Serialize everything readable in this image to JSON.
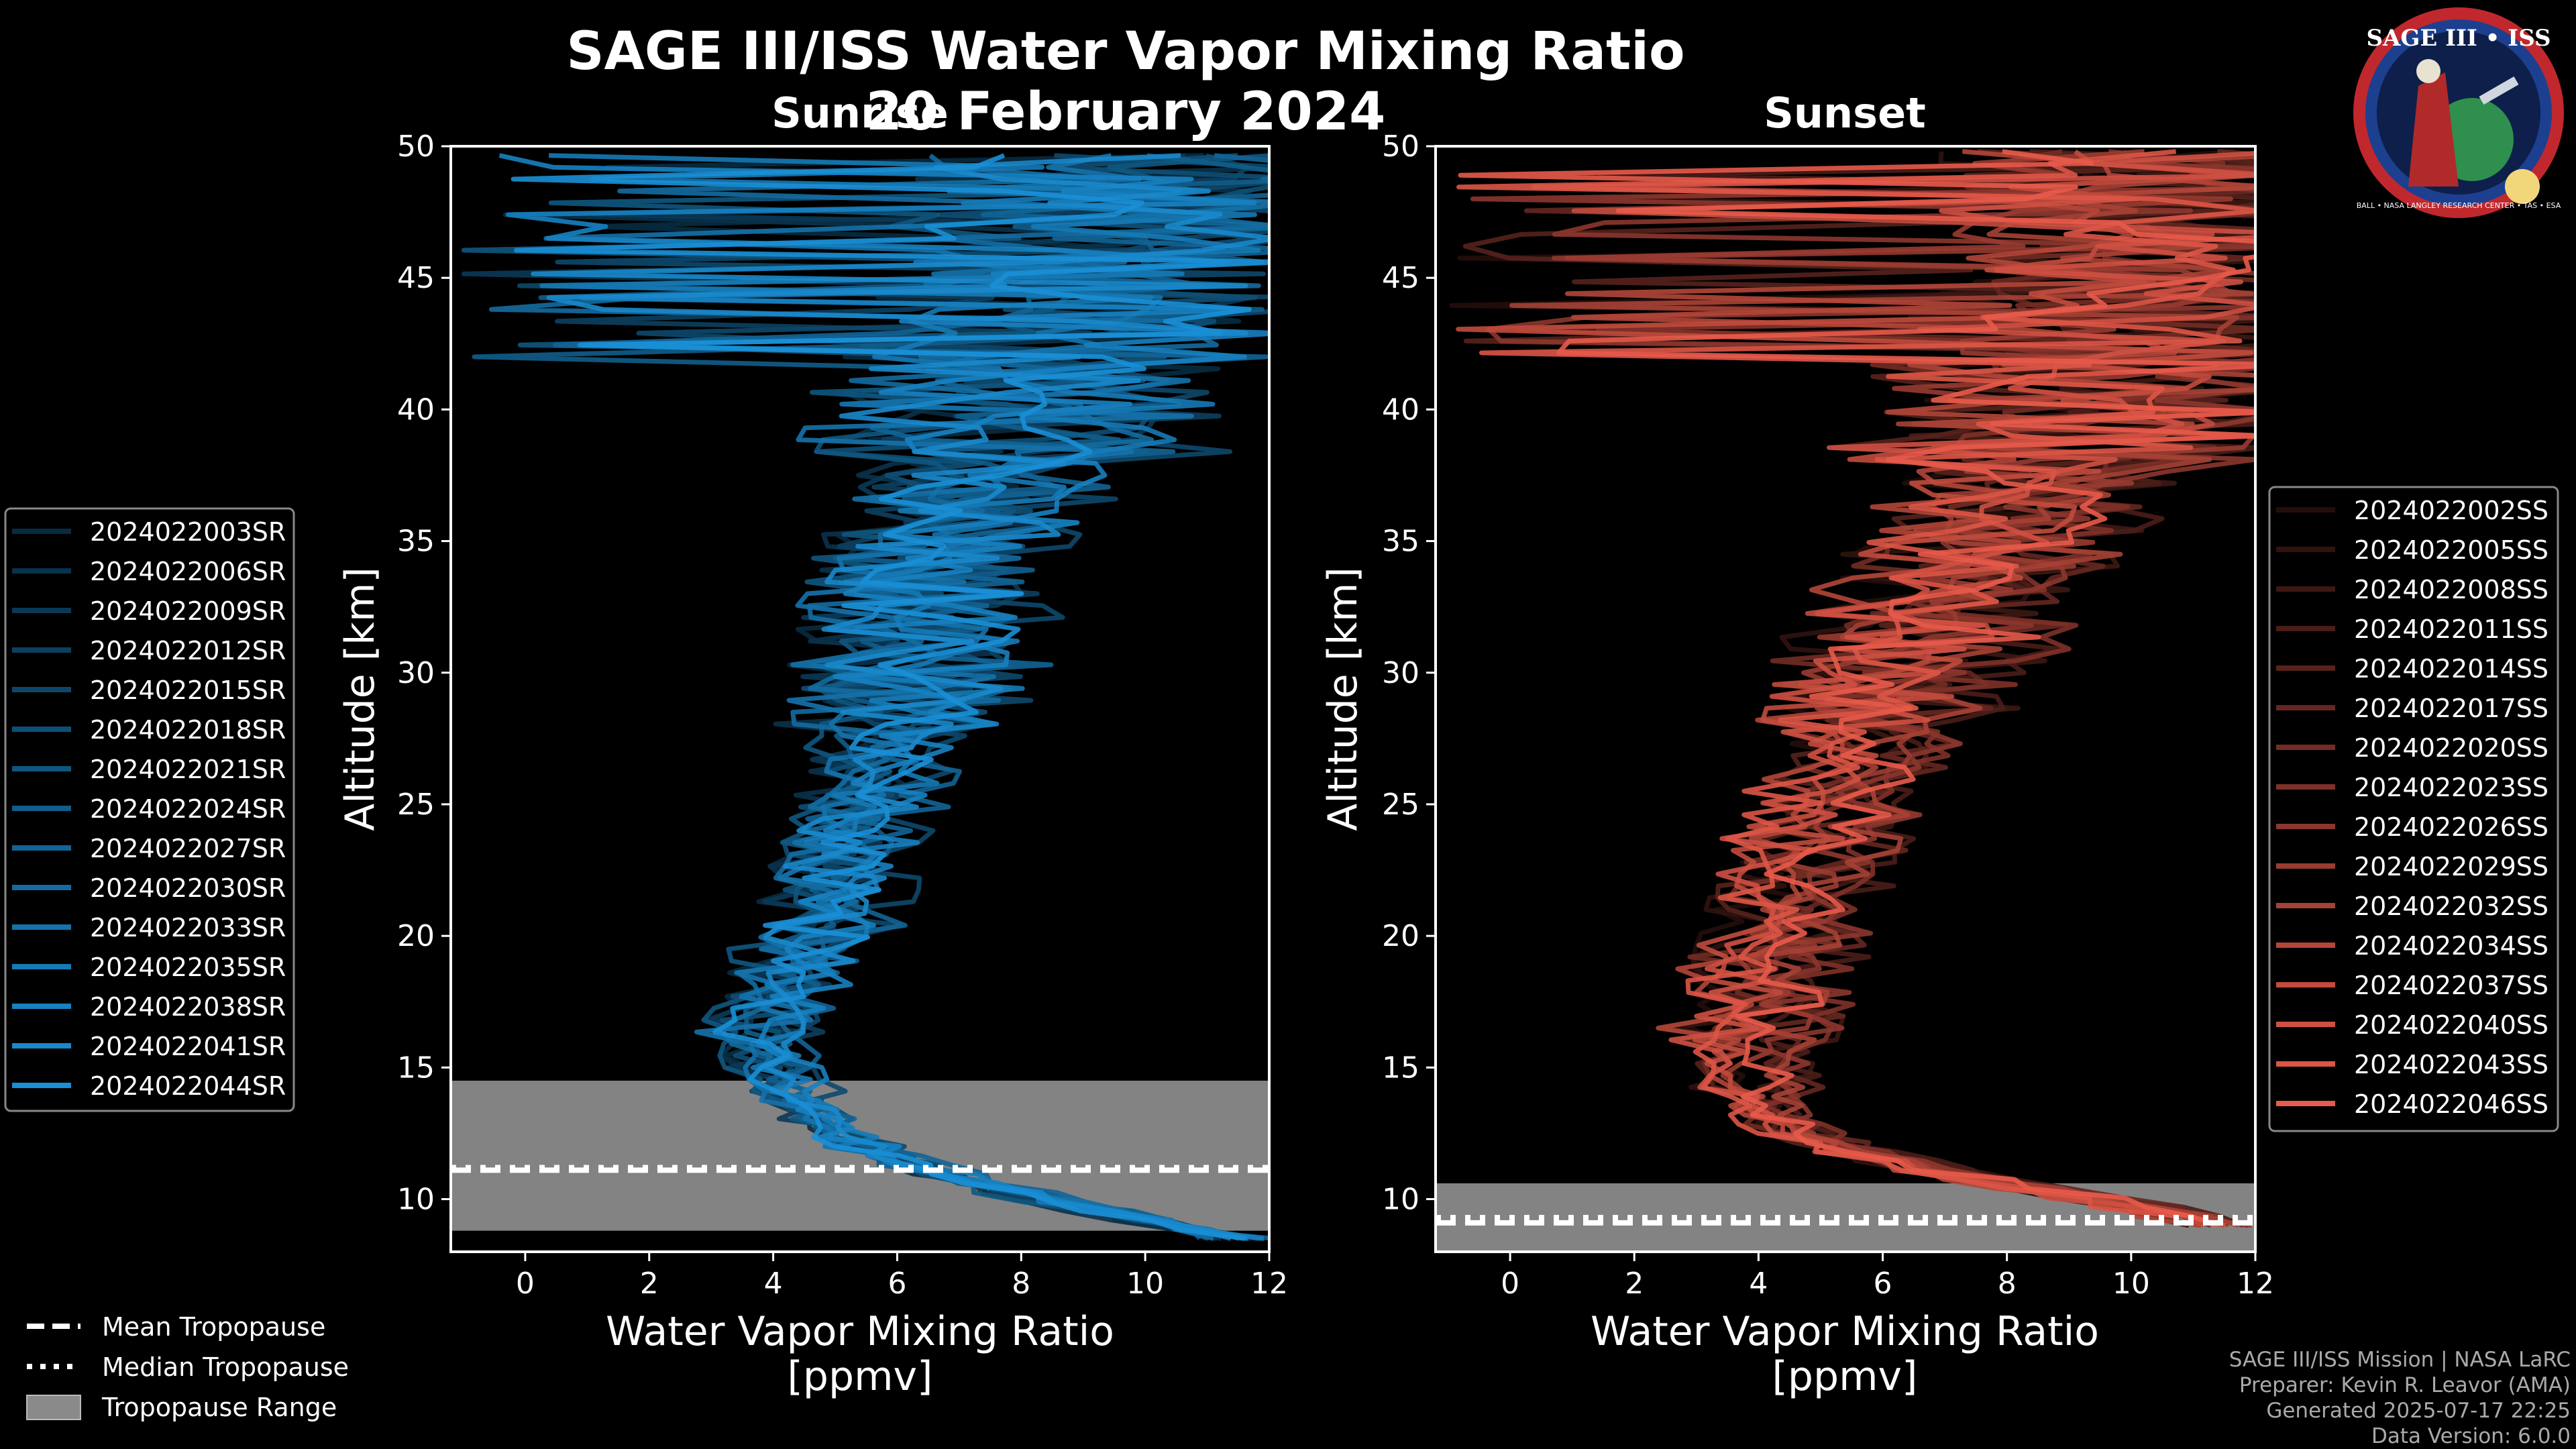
{
  "figure": {
    "title": "SAGE III/ISS Water Vapor Mixing Ratio",
    "date": "20 February 2024",
    "logo": {
      "text": "SAGE III • ISS",
      "ring_text": "BALL • NASA LANGLEY RESEARCH CENTER • TAS • ESA"
    },
    "credits": [
      "SAGE III/ISS Mission | NASA LaRC",
      "Preparer: Kevin R. Leavor (AMA)",
      "Generated 2025-07-17 22:25",
      "Data Version: 6.0.0"
    ],
    "colors": {
      "background": "#000000",
      "sunrise": "#1a8fd6",
      "sunset": "#e85a4a",
      "tropopause_range": "#8a8a8a"
    }
  },
  "chart_data": [
    {
      "type": "line",
      "panel": "sunrise",
      "subtitle": "Sunrise",
      "xlabel": "Water Vapor Mixing Ratio [ppmv]",
      "xlabel_lines": [
        "Water Vapor Mixing Ratio",
        "[ppmv]"
      ],
      "ylabel": "Altitude [km]",
      "xlim": [
        -1.2,
        12
      ],
      "ylim": [
        8,
        50
      ],
      "xticks": [
        0,
        2,
        4,
        6,
        8,
        10,
        12
      ],
      "yticks": [
        10,
        15,
        20,
        25,
        30,
        35,
        40,
        45,
        50
      ],
      "series_names": [
        "2024022003SR",
        "2024022006SR",
        "2024022009SR",
        "2024022012SR",
        "2024022015SR",
        "2024022018SR",
        "2024022021SR",
        "2024022024SR",
        "2024022027SR",
        "2024022030SR",
        "2024022033SR",
        "2024022035SR",
        "2024022038SR",
        "2024022041SR",
        "2024022044SR"
      ],
      "mean_profile": {
        "altitude": [
          8.5,
          9.5,
          10.5,
          11.5,
          12.5,
          13.5,
          14.5,
          15.5,
          16.5,
          18,
          20,
          22,
          25,
          28,
          31,
          34,
          37,
          40,
          43,
          46,
          49.5
        ],
        "value": [
          11.5,
          9.5,
          7.5,
          6.0,
          5.0,
          4.5,
          4.2,
          4.0,
          4.1,
          4.4,
          4.8,
          5.1,
          5.6,
          6.0,
          6.4,
          6.8,
          7.5,
          8.2,
          8.8,
          9.5,
          10.0
        ]
      },
      "tropopause": {
        "mean_km": 11.1,
        "median_km": 11.2,
        "range_km": [
          8.8,
          14.5
        ]
      }
    },
    {
      "type": "line",
      "panel": "sunset",
      "subtitle": "Sunset",
      "xlabel": "Water Vapor Mixing Ratio [ppmv]",
      "xlabel_lines": [
        "Water Vapor Mixing Ratio",
        "[ppmv]"
      ],
      "ylabel": "Altitude [km]",
      "xlim": [
        -1.2,
        12
      ],
      "ylim": [
        8,
        50
      ],
      "xticks": [
        0,
        2,
        4,
        6,
        8,
        10,
        12
      ],
      "yticks": [
        10,
        15,
        20,
        25,
        30,
        35,
        40,
        45,
        50
      ],
      "series_names": [
        "2024022002SS",
        "2024022005SS",
        "2024022008SS",
        "2024022011SS",
        "2024022014SS",
        "2024022017SS",
        "2024022020SS",
        "2024022023SS",
        "2024022026SS",
        "2024022029SS",
        "2024022032SS",
        "2024022034SS",
        "2024022037SS",
        "2024022040SS",
        "2024022043SS",
        "2024022046SS"
      ],
      "mean_profile": {
        "altitude": [
          9,
          10,
          11,
          12,
          13,
          14,
          15,
          16,
          17,
          18,
          20,
          22,
          25,
          28,
          31,
          34,
          37,
          40,
          43,
          46,
          49.5
        ],
        "value": [
          11.5,
          9.5,
          7.0,
          5.2,
          4.3,
          3.9,
          3.8,
          3.8,
          3.9,
          4.0,
          4.3,
          4.6,
          5.2,
          5.8,
          6.5,
          7.4,
          8.3,
          9.0,
          9.6,
          10.2,
          10.6
        ]
      },
      "tropopause": {
        "mean_km": 9.1,
        "median_km": 9.3,
        "range_km": [
          8.0,
          10.6
        ]
      }
    }
  ],
  "legend": {
    "tropopause_items": [
      {
        "label": "Mean Tropopause",
        "style": "dashed"
      },
      {
        "label": "Median Tropopause",
        "style": "dotted"
      },
      {
        "label": "Tropopause Range",
        "style": "patch"
      }
    ]
  }
}
